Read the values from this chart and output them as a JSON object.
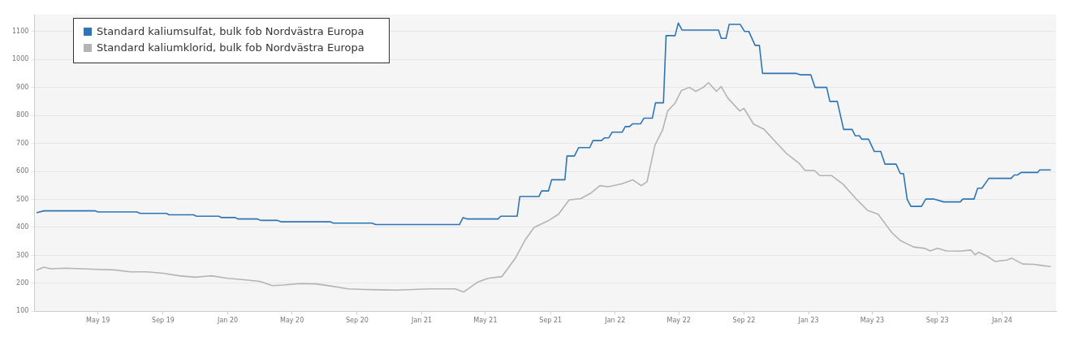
{
  "chart_data": {
    "type": "line",
    "xlim": [
      "2019-01-01",
      "2024-04-12"
    ],
    "ylim": [
      100,
      1160
    ],
    "xticks": [
      {
        "value": "2019-05-01",
        "label": "May 19"
      },
      {
        "value": "2019-09-01",
        "label": "Sep 19"
      },
      {
        "value": "2020-01-01",
        "label": "Jan 20"
      },
      {
        "value": "2020-05-01",
        "label": "May 20"
      },
      {
        "value": "2020-09-01",
        "label": "Sep 20"
      },
      {
        "value": "2021-01-01",
        "label": "Jan 21"
      },
      {
        "value": "2021-05-01",
        "label": "May 21"
      },
      {
        "value": "2021-09-01",
        "label": "Sep 21"
      },
      {
        "value": "2022-01-01",
        "label": "Jan 22"
      },
      {
        "value": "2022-05-01",
        "label": "May 22"
      },
      {
        "value": "2022-09-01",
        "label": "Sep 22"
      },
      {
        "value": "2023-01-01",
        "label": "Jan 23"
      },
      {
        "value": "2023-05-01",
        "label": "May 23"
      },
      {
        "value": "2023-09-01",
        "label": "Sep 23"
      },
      {
        "value": "2024-01-01",
        "label": "Jan 24"
      }
    ],
    "yticks": [
      100,
      200,
      300,
      400,
      500,
      600,
      700,
      800,
      900,
      1000,
      1100
    ],
    "grid": "y",
    "legend": "top left",
    "series": [
      {
        "name": "Standard kaliumsulfat, bulk fob Nordvästra Europa",
        "color": "#2e75b6",
        "x": [
          "2019-01-05",
          "2019-01-19",
          "2019-04-26",
          "2019-05-01",
          "2019-07-13",
          "2019-07-20",
          "2019-09-07",
          "2019-09-12",
          "2019-10-28",
          "2019-11-03",
          "2019-12-15",
          "2019-12-20",
          "2020-01-15",
          "2020-01-20",
          "2020-02-26",
          "2020-03-03",
          "2020-04-03",
          "2020-04-10",
          "2020-07-12",
          "2020-07-18",
          "2020-09-29",
          "2020-10-06",
          "2021-03-13",
          "2021-03-20",
          "2021-03-28",
          "2021-05-25",
          "2021-05-30",
          "2021-06-30",
          "2021-07-05",
          "2021-08-10",
          "2021-08-15",
          "2021-08-28",
          "2021-09-03",
          "2021-09-28",
          "2021-10-02",
          "2021-10-16",
          "2021-10-24",
          "2021-11-14",
          "2021-11-20",
          "2021-12-06",
          "2021-12-12",
          "2021-12-20",
          "2021-12-26",
          "2022-01-14",
          "2022-01-20",
          "2022-01-28",
          "2022-02-03",
          "2022-02-18",
          "2022-02-24",
          "2022-03-12",
          "2022-03-18",
          "2022-04-02",
          "2022-04-07",
          "2022-04-24",
          "2022-04-30",
          "2022-05-07",
          "2022-07-15",
          "2022-07-20",
          "2022-07-29",
          "2022-08-04",
          "2022-08-25",
          "2022-09-02",
          "2022-09-10",
          "2022-09-22",
          "2022-09-30",
          "2022-10-06",
          "2022-12-09",
          "2022-12-16",
          "2023-01-05",
          "2023-01-13",
          "2023-02-04",
          "2023-02-10",
          "2023-02-24",
          "2023-03-08",
          "2023-03-24",
          "2023-03-30",
          "2023-04-07",
          "2023-04-11",
          "2023-04-24",
          "2023-05-05",
          "2023-05-17",
          "2023-05-25",
          "2023-06-15",
          "2023-06-23",
          "2023-06-29",
          "2023-07-06",
          "2023-07-13",
          "2023-08-02",
          "2023-08-10",
          "2023-08-26",
          "2023-09-13",
          "2023-10-14",
          "2023-10-19",
          "2023-11-09",
          "2023-11-16",
          "2023-11-24",
          "2023-12-07",
          "2024-01-18",
          "2024-01-24",
          "2024-01-30",
          "2024-02-06",
          "2024-03-08",
          "2024-03-12",
          "2024-04-02"
        ],
        "values": [
          452,
          459,
          459,
          455,
          455,
          450,
          450,
          445,
          445,
          440,
          440,
          435,
          435,
          430,
          430,
          425,
          425,
          420,
          420,
          415,
          415,
          410,
          410,
          435,
          430,
          430,
          440,
          440,
          510,
          510,
          530,
          530,
          570,
          570,
          655,
          655,
          685,
          685,
          710,
          710,
          720,
          720,
          740,
          740,
          760,
          760,
          770,
          770,
          790,
          790,
          845,
          845,
          1085,
          1085,
          1130,
          1105,
          1105,
          1075,
          1075,
          1125,
          1125,
          1100,
          1100,
          1050,
          1050,
          950,
          950,
          945,
          945,
          900,
          900,
          850,
          850,
          750,
          750,
          727,
          727,
          715,
          715,
          671,
          671,
          626,
          626,
          592,
          592,
          500,
          475,
          475,
          501,
          501,
          491,
          491,
          501,
          501,
          540,
          540,
          575,
          575,
          587,
          587,
          596,
          596,
          605,
          605
        ]
      },
      {
        "name": "Standard kaliumklorid, bulk fob Nordvästra Europa",
        "color": "#b4b4b4",
        "x": [
          "2019-01-05",
          "2019-01-19",
          "2019-02-01",
          "2019-03-01",
          "2019-04-01",
          "2019-05-01",
          "2019-06-01",
          "2019-07-01",
          "2019-08-01",
          "2019-09-01",
          "2019-10-01",
          "2019-11-01",
          "2019-12-01",
          "2020-01-01",
          "2020-02-01",
          "2020-03-01",
          "2020-03-25",
          "2020-04-15",
          "2020-05-15",
          "2020-06-15",
          "2020-07-15",
          "2020-08-15",
          "2020-09-15",
          "2020-10-15",
          "2020-11-15",
          "2020-12-15",
          "2021-01-15",
          "2021-03-05",
          "2021-03-21",
          "2021-04-16",
          "2021-05-06",
          "2021-06-01",
          "2021-06-26",
          "2021-07-16",
          "2021-08-01",
          "2021-08-27",
          "2021-09-16",
          "2021-10-06",
          "2021-10-28",
          "2021-11-15",
          "2021-12-03",
          "2021-12-19",
          "2022-01-14",
          "2022-02-03",
          "2022-02-19",
          "2022-03-02",
          "2022-03-17",
          "2022-03-31",
          "2022-04-10",
          "2022-04-24",
          "2022-05-06",
          "2022-05-21",
          "2022-06-02",
          "2022-06-16",
          "2022-06-26",
          "2022-07-11",
          "2022-07-20",
          "2022-08-01",
          "2022-08-24",
          "2022-09-01",
          "2022-09-19",
          "2022-10-09",
          "2022-10-29",
          "2022-11-19",
          "2022-12-14",
          "2022-12-25",
          "2023-01-12",
          "2023-01-22",
          "2023-02-13",
          "2023-03-07",
          "2023-03-31",
          "2023-04-22",
          "2023-05-12",
          "2023-06-07",
          "2023-06-23",
          "2023-07-18",
          "2023-08-08",
          "2023-08-18",
          "2023-09-01",
          "2023-09-18",
          "2023-10-14",
          "2023-11-03",
          "2023-11-11",
          "2023-11-18",
          "2023-12-04",
          "2023-12-19",
          "2024-01-10",
          "2024-01-19",
          "2024-02-09",
          "2024-03-01",
          "2024-03-16",
          "2024-04-02"
        ],
        "values": [
          247,
          258,
          252,
          254,
          252,
          250,
          248,
          241,
          241,
          236,
          227,
          222,
          227,
          218,
          213,
          207,
          192,
          194,
          199,
          198,
          190,
          180,
          178,
          177,
          176,
          178,
          180,
          180,
          169,
          204,
          218,
          224,
          288,
          358,
          400,
          423,
          447,
          498,
          503,
          521,
          549,
          545,
          556,
          570,
          549,
          563,
          694,
          746,
          816,
          844,
          889,
          900,
          886,
          900,
          917,
          886,
          903,
          863,
          816,
          825,
          769,
          750,
          709,
          666,
          629,
          604,
          603,
          585,
          585,
          554,
          503,
          461,
          447,
          381,
          353,
          330,
          325,
          316,
          325,
          316,
          315,
          319,
          302,
          311,
          297,
          278,
          283,
          290,
          269,
          268,
          264,
          260
        ]
      }
    ]
  }
}
